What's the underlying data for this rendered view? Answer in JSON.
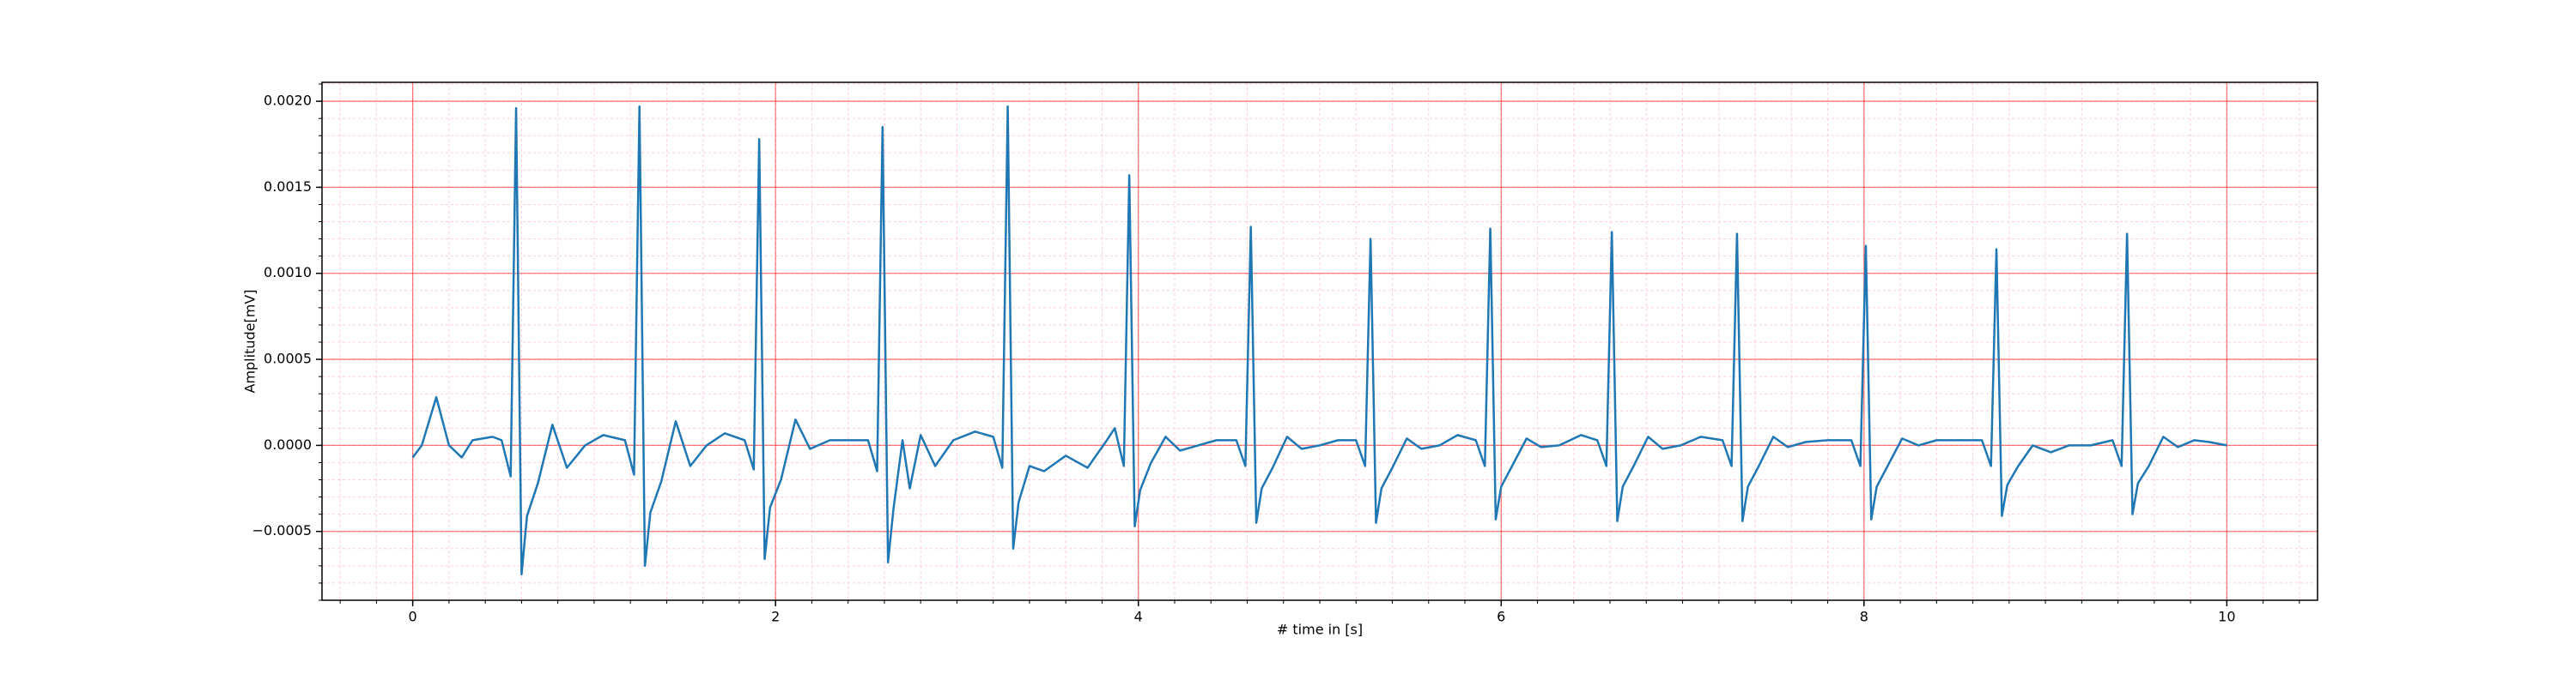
{
  "chart_data": {
    "type": "line",
    "xlabel": "# time in [s]",
    "ylabel": "Amplitude[mV]",
    "xlim": [
      -0.5,
      10.5
    ],
    "xticks": [
      0,
      2,
      4,
      6,
      8,
      10
    ],
    "ylim": [
      -0.0009,
      0.00211
    ],
    "yticks": [
      {
        "value": -0.0005,
        "label": "−0.0005"
      },
      {
        "value": 0,
        "label": "0.0000"
      },
      {
        "value": 0.0005,
        "label": "0.0005"
      },
      {
        "value": 0.001,
        "label": "0.0010"
      },
      {
        "value": 0.0015,
        "label": "0.0015"
      },
      {
        "value": 0.002,
        "label": "0.0020"
      }
    ],
    "grid": true,
    "major_grid_color": "#ff0000",
    "minor_grid_color": "#ffc0cb",
    "x_minor_step": 0.2,
    "y_minor_step": 0.0001,
    "series": [
      {
        "color": "#1f77b4",
        "x": [
          0,
          0.05,
          0.13,
          0.2,
          0.27,
          0.33,
          0.44,
          0.49,
          0.54,
          0.57,
          0.6,
          0.63,
          0.69,
          0.77,
          0.85,
          0.95,
          1.05,
          1.17,
          1.22,
          1.25,
          1.28,
          1.31,
          1.37,
          1.45,
          1.53,
          1.62,
          1.72,
          1.83,
          1.88,
          1.91,
          1.94,
          1.97,
          2.03,
          2.11,
          2.19,
          2.3,
          2.4,
          2.51,
          2.56,
          2.59,
          2.62,
          2.65,
          2.7,
          2.74,
          2.8,
          2.88,
          2.98,
          3.1,
          3.2,
          3.25,
          3.28,
          3.31,
          3.34,
          3.4,
          3.48,
          3.6,
          3.72,
          3.82,
          3.87,
          3.92,
          3.95,
          3.98,
          4.01,
          4.07,
          4.15,
          4.23,
          4.33,
          4.43,
          4.54,
          4.59,
          4.62,
          4.65,
          4.68,
          4.74,
          4.82,
          4.9,
          5.0,
          5.1,
          5.2,
          5.25,
          5.28,
          5.31,
          5.34,
          5.4,
          5.48,
          5.56,
          5.66,
          5.76,
          5.86,
          5.91,
          5.94,
          5.97,
          6.0,
          6.06,
          6.14,
          6.22,
          6.32,
          6.44,
          6.53,
          6.58,
          6.61,
          6.64,
          6.67,
          6.73,
          6.81,
          6.89,
          6.99,
          7.1,
          7.22,
          7.27,
          7.3,
          7.33,
          7.36,
          7.42,
          7.5,
          7.58,
          7.68,
          7.8,
          7.93,
          7.98,
          8.01,
          8.04,
          8.07,
          8.13,
          8.21,
          8.3,
          8.4,
          8.55,
          8.65,
          8.7,
          8.73,
          8.76,
          8.79,
          8.85,
          8.93,
          9.03,
          9.13,
          9.25,
          9.37,
          9.42,
          9.45,
          9.48,
          9.51,
          9.57,
          9.65,
          9.73,
          9.82,
          9.9,
          10.0
        ],
        "values": [
          -7e-05,
          0.0,
          0.00028,
          0.0,
          -7e-05,
          3e-05,
          5e-05,
          3e-05,
          -0.00018,
          0.00196,
          -0.00075,
          -0.00041,
          -0.00022,
          0.00012,
          -0.00013,
          0.0,
          6e-05,
          3e-05,
          -0.00017,
          0.00197,
          -0.0007,
          -0.00039,
          -0.00021,
          0.00014,
          -0.00012,
          0.0,
          7e-05,
          3e-05,
          -0.00014,
          0.00178,
          -0.00066,
          -0.00036,
          -0.0002,
          0.00015,
          -2e-05,
          3e-05,
          3e-05,
          3e-05,
          -0.00015,
          0.00185,
          -0.00068,
          -0.00037,
          3e-05,
          -0.00025,
          6e-05,
          -0.00012,
          3e-05,
          8e-05,
          5e-05,
          -0.00013,
          0.00197,
          -0.0006,
          -0.00033,
          -0.00012,
          -0.00015,
          -6e-05,
          -0.00013,
          2e-05,
          0.0001,
          -0.00012,
          0.00157,
          -0.00047,
          -0.00026,
          -0.0001,
          5e-05,
          -3e-05,
          0.0,
          3e-05,
          3e-05,
          -0.00012,
          0.00127,
          -0.00045,
          -0.00025,
          -0.00013,
          5e-05,
          -2e-05,
          0.0,
          3e-05,
          3e-05,
          -0.00012,
          0.0012,
          -0.00045,
          -0.00025,
          -0.00013,
          4e-05,
          -2e-05,
          0.0,
          6e-05,
          3e-05,
          -0.00012,
          0.00126,
          -0.00043,
          -0.00024,
          -0.00012,
          4e-05,
          -1e-05,
          0.0,
          6e-05,
          3e-05,
          -0.00012,
          0.00124,
          -0.00044,
          -0.00024,
          -0.00012,
          5e-05,
          -2e-05,
          0.0,
          5e-05,
          3e-05,
          -0.00012,
          0.00123,
          -0.00044,
          -0.00024,
          -0.00012,
          5e-05,
          -1e-05,
          2e-05,
          3e-05,
          3e-05,
          -0.00012,
          0.00116,
          -0.00043,
          -0.00024,
          -0.00012,
          4e-05,
          0.0,
          3e-05,
          3e-05,
          3e-05,
          -0.00012,
          0.00114,
          -0.00041,
          -0.00023,
          -0.00012,
          0.0,
          -4e-05,
          0.0,
          0.0,
          3e-05,
          -0.00012,
          0.00123,
          -0.0004,
          -0.00022,
          -0.00012,
          5e-05,
          -1e-05,
          3e-05,
          2e-05,
          0.0
        ]
      }
    ]
  }
}
